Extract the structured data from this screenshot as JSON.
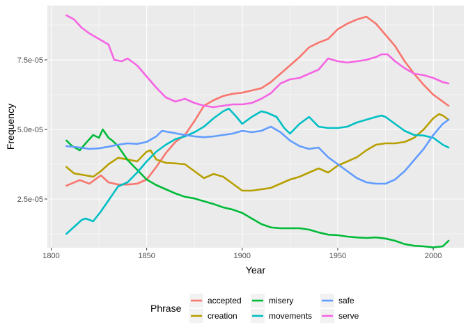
{
  "chart_data": {
    "type": "line",
    "xlabel": "Year",
    "ylabel": "Frequency",
    "xlim": [
      1798,
      2016
    ],
    "ylim": [
      7.5e-06,
      9.45e-05
    ],
    "x_ticks": [
      1800,
      1850,
      1900,
      1950,
      2000
    ],
    "x_tick_labels": [
      "1800",
      "1850",
      "1900",
      "1950",
      "2000"
    ],
    "y_ticks": [
      2.5e-05,
      5e-05,
      7.5e-05
    ],
    "y_tick_labels": [
      "2.5e-05",
      "5.0e-05",
      "7.5e-05"
    ],
    "legend_title": "Phrase",
    "legend_position": "bottom",
    "series": [
      {
        "name": "accepted",
        "color": "#F8766D",
        "x": [
          1808,
          1815,
          1820,
          1826,
          1830,
          1835,
          1840,
          1845,
          1850,
          1855,
          1860,
          1865,
          1870,
          1875,
          1880,
          1885,
          1890,
          1895,
          1900,
          1905,
          1910,
          1915,
          1920,
          1925,
          1930,
          1935,
          1940,
          1945,
          1950,
          1955,
          1960,
          1965,
          1970,
          1975,
          1980,
          1985,
          1990,
          1995,
          2000,
          2005,
          2008
        ],
        "y": [
          2.98e-05,
          3.18e-05,
          3.05e-05,
          3.35e-05,
          3.1e-05,
          3.02e-05,
          3.02e-05,
          3.05e-05,
          3.2e-05,
          3.65e-05,
          4.15e-05,
          4.55e-05,
          4.8e-05,
          5.3e-05,
          5.85e-05,
          6.05e-05,
          6.2e-05,
          6.28e-05,
          6.32e-05,
          6.4e-05,
          6.48e-05,
          6.7e-05,
          7e-05,
          7.3e-05,
          7.6e-05,
          7.95e-05,
          8.12e-05,
          8.25e-05,
          8.6e-05,
          8.8e-05,
          8.95e-05,
          9.05e-05,
          8.8e-05,
          8.4e-05,
          8e-05,
          7.45e-05,
          7e-05,
          6.6e-05,
          6.25e-05,
          6e-05,
          5.85e-05
        ]
      },
      {
        "name": "creation",
        "color": "#B79F00",
        "x": [
          1808,
          1812,
          1818,
          1822,
          1826,
          1830,
          1835,
          1840,
          1845,
          1850,
          1852,
          1855,
          1860,
          1865,
          1870,
          1875,
          1880,
          1885,
          1890,
          1895,
          1900,
          1905,
          1910,
          1915,
          1920,
          1925,
          1930,
          1935,
          1940,
          1945,
          1950,
          1955,
          1960,
          1965,
          1970,
          1975,
          1980,
          1985,
          1990,
          1995,
          2000,
          2003,
          2005,
          2008
        ],
        "y": [
          3.65e-05,
          3.42e-05,
          3.35e-05,
          3.3e-05,
          3.5e-05,
          3.75e-05,
          3.98e-05,
          3.92e-05,
          3.85e-05,
          4.2e-05,
          4.25e-05,
          3.92e-05,
          3.8e-05,
          3.78e-05,
          3.75e-05,
          3.5e-05,
          3.25e-05,
          3.4e-05,
          3.3e-05,
          3.05e-05,
          2.8e-05,
          2.8e-05,
          2.85e-05,
          2.9e-05,
          3.05e-05,
          3.2e-05,
          3.3e-05,
          3.45e-05,
          3.6e-05,
          3.45e-05,
          3.7e-05,
          3.85e-05,
          4e-05,
          4.25e-05,
          4.45e-05,
          4.5e-05,
          4.5e-05,
          4.55e-05,
          4.7e-05,
          5e-05,
          5.4e-05,
          5.55e-05,
          5.5e-05,
          5.35e-05
        ]
      },
      {
        "name": "misery",
        "color": "#00BA38",
        "x": [
          1808,
          1811,
          1815,
          1818,
          1822,
          1825,
          1827,
          1830,
          1832,
          1835,
          1840,
          1845,
          1850,
          1855,
          1860,
          1865,
          1870,
          1875,
          1880,
          1885,
          1890,
          1895,
          1900,
          1905,
          1910,
          1915,
          1920,
          1925,
          1930,
          1935,
          1940,
          1945,
          1950,
          1955,
          1960,
          1965,
          1970,
          1975,
          1980,
          1985,
          1990,
          1995,
          2000,
          2005,
          2008
        ],
        "y": [
          4.6e-05,
          4.4e-05,
          4.25e-05,
          4.5e-05,
          4.8e-05,
          4.7e-05,
          5e-05,
          4.7e-05,
          4.6e-05,
          4.4e-05,
          3.9e-05,
          3.55e-05,
          3.2e-05,
          3e-05,
          2.85e-05,
          2.7e-05,
          2.58e-05,
          2.52e-05,
          2.42e-05,
          2.32e-05,
          2.2e-05,
          2.12e-05,
          2e-05,
          1.8e-05,
          1.6e-05,
          1.48e-05,
          1.45e-05,
          1.45e-05,
          1.45e-05,
          1.4e-05,
          1.3e-05,
          1.22e-05,
          1.2e-05,
          1.15e-05,
          1.12e-05,
          1.1e-05,
          1.12e-05,
          1.08e-05,
          1e-05,
          8.8e-06,
          8.2e-06,
          8e-06,
          7.6e-06,
          8e-06,
          1e-05
        ]
      },
      {
        "name": "movements",
        "color": "#00BFC4",
        "x": [
          1808,
          1812,
          1816,
          1818,
          1822,
          1826,
          1830,
          1835,
          1840,
          1845,
          1850,
          1855,
          1860,
          1865,
          1870,
          1875,
          1880,
          1885,
          1890,
          1893,
          1897,
          1900,
          1905,
          1910,
          1913,
          1918,
          1922,
          1925,
          1930,
          1935,
          1940,
          1945,
          1950,
          1955,
          1960,
          1965,
          1970,
          1973,
          1975,
          1980,
          1985,
          1990,
          1995,
          2000,
          2005,
          2008
        ],
        "y": [
          1.25e-05,
          1.5e-05,
          1.75e-05,
          1.8e-05,
          1.7e-05,
          2.05e-05,
          2.45e-05,
          2.95e-05,
          3.1e-05,
          3.45e-05,
          3.85e-05,
          4.2e-05,
          4.45e-05,
          4.65e-05,
          4.75e-05,
          4.9e-05,
          5.1e-05,
          5.4e-05,
          5.65e-05,
          5.75e-05,
          5.45e-05,
          5.2e-05,
          5.45e-05,
          5.65e-05,
          5.6e-05,
          5.45e-05,
          5.05e-05,
          4.85e-05,
          5.2e-05,
          5.45e-05,
          5.1e-05,
          5.05e-05,
          5.05e-05,
          5.1e-05,
          5.25e-05,
          5.35e-05,
          5.45e-05,
          5.5e-05,
          5.45e-05,
          5.2e-05,
          4.95e-05,
          4.8e-05,
          4.78e-05,
          4.7e-05,
          4.45e-05,
          4.35e-05
        ]
      },
      {
        "name": "safe",
        "color": "#619CFF",
        "x": [
          1808,
          1815,
          1820,
          1825,
          1830,
          1835,
          1840,
          1845,
          1850,
          1855,
          1858,
          1862,
          1866,
          1870,
          1875,
          1880,
          1885,
          1890,
          1895,
          1900,
          1905,
          1910,
          1915,
          1920,
          1925,
          1930,
          1935,
          1940,
          1945,
          1950,
          1955,
          1960,
          1965,
          1970,
          1975,
          1980,
          1985,
          1990,
          1995,
          2000,
          2005,
          2008
        ],
        "y": [
          4.4e-05,
          4.35e-05,
          4.3e-05,
          4.32e-05,
          4.38e-05,
          4.45e-05,
          4.5e-05,
          4.48e-05,
          4.55e-05,
          4.75e-05,
          4.95e-05,
          4.9e-05,
          4.85e-05,
          4.8e-05,
          4.75e-05,
          4.72e-05,
          4.75e-05,
          4.8e-05,
          4.85e-05,
          4.95e-05,
          4.9e-05,
          4.95e-05,
          5.1e-05,
          4.9e-05,
          4.6e-05,
          4.4e-05,
          4.3e-05,
          4.35e-05,
          4e-05,
          3.75e-05,
          3.5e-05,
          3.25e-05,
          3.1e-05,
          3.05e-05,
          3.05e-05,
          3.2e-05,
          3.5e-05,
          3.9e-05,
          4.3e-05,
          4.8e-05,
          5.2e-05,
          5.35e-05
        ]
      },
      {
        "name": "serve",
        "color": "#F564E3",
        "x": [
          1808,
          1812,
          1816,
          1820,
          1825,
          1830,
          1833,
          1837,
          1840,
          1845,
          1850,
          1855,
          1860,
          1865,
          1870,
          1875,
          1880,
          1885,
          1890,
          1895,
          1900,
          1905,
          1910,
          1915,
          1920,
          1925,
          1930,
          1935,
          1940,
          1945,
          1950,
          1955,
          1960,
          1965,
          1970,
          1973,
          1976,
          1980,
          1985,
          1990,
          1995,
          2000,
          2005,
          2008
        ],
        "y": [
          9.1e-05,
          8.95e-05,
          8.65e-05,
          8.45e-05,
          8.25e-05,
          8.05e-05,
          7.5e-05,
          7.45e-05,
          7.55e-05,
          7.3e-05,
          6.9e-05,
          6.5e-05,
          6.15e-05,
          6e-05,
          6.1e-05,
          5.95e-05,
          5.85e-05,
          5.8e-05,
          5.85e-05,
          5.9e-05,
          5.9e-05,
          5.95e-05,
          6.1e-05,
          6.3e-05,
          6.65e-05,
          6.8e-05,
          6.85e-05,
          7e-05,
          7.15e-05,
          7.55e-05,
          7.45e-05,
          7.4e-05,
          7.45e-05,
          7.5e-05,
          7.6e-05,
          7.7e-05,
          7.7e-05,
          7.45e-05,
          7.2e-05,
          7e-05,
          6.95e-05,
          6.85e-05,
          6.7e-05,
          6.65e-05
        ]
      }
    ]
  }
}
